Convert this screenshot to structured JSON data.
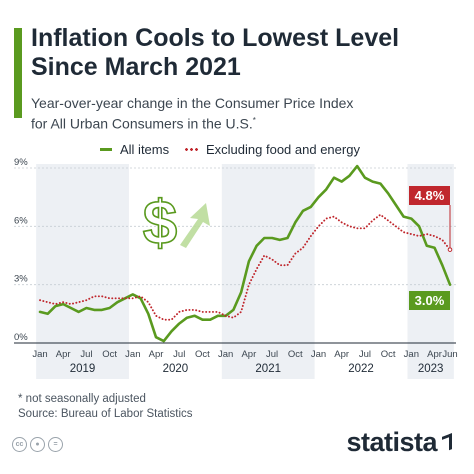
{
  "header": {
    "title_line1": "Inflation Cools to Lowest Level",
    "title_line2": "Since March 2021",
    "subtitle_line1": "Year-over-year change in the Consumer Price Index",
    "subtitle_line2": "for All Urban Consumers in the U.S.",
    "subtitle_mark": "*"
  },
  "footer": {
    "note": "* not seasonally adjusted",
    "source": "Source: Bureau of Labor Statistics",
    "brand": "statista"
  },
  "icons": [
    "cc-icon",
    "by-icon",
    "equals-icon",
    "dollar-arrow-icon"
  ],
  "colors": {
    "all_items": "#5a9a1f",
    "core": "#c0272d",
    "title_bar": "#5a9a1f",
    "shade": "#edf0f4"
  },
  "chart_data": {
    "type": "line",
    "title": "Inflation Cools to Lowest Level Since March 2021",
    "subtitle": "Year-over-year change in the Consumer Price Index for All Urban Consumers in the U.S.",
    "x": [
      "2019-01",
      "2019-02",
      "2019-03",
      "2019-04",
      "2019-05",
      "2019-06",
      "2019-07",
      "2019-08",
      "2019-09",
      "2019-10",
      "2019-11",
      "2019-12",
      "2020-01",
      "2020-02",
      "2020-03",
      "2020-04",
      "2020-05",
      "2020-06",
      "2020-07",
      "2020-08",
      "2020-09",
      "2020-10",
      "2020-11",
      "2020-12",
      "2021-01",
      "2021-02",
      "2021-03",
      "2021-04",
      "2021-05",
      "2021-06",
      "2021-07",
      "2021-08",
      "2021-09",
      "2021-10",
      "2021-11",
      "2021-12",
      "2022-01",
      "2022-02",
      "2022-03",
      "2022-04",
      "2022-05",
      "2022-06",
      "2022-07",
      "2022-08",
      "2022-09",
      "2022-10",
      "2022-11",
      "2022-12",
      "2023-01",
      "2023-02",
      "2023-03",
      "2023-04",
      "2023-05",
      "2023-06"
    ],
    "x_tick_labels": [
      "Jan",
      "Apr",
      "Jul",
      "Oct",
      "Jan",
      "Apr",
      "Jul",
      "Oct",
      "Jan",
      "Apr",
      "Jul",
      "Oct",
      "Jan",
      "Apr",
      "Jul",
      "Oct",
      "Jan",
      "Apr",
      "Jun"
    ],
    "year_labels": [
      "2019",
      "2020",
      "2021",
      "2022",
      "2023"
    ],
    "series": [
      {
        "name": "All items",
        "values": [
          1.6,
          1.5,
          1.9,
          2.0,
          1.8,
          1.6,
          1.8,
          1.7,
          1.7,
          1.8,
          2.1,
          2.3,
          2.5,
          2.3,
          1.5,
          0.3,
          0.1,
          0.6,
          1.0,
          1.3,
          1.4,
          1.2,
          1.2,
          1.4,
          1.4,
          1.7,
          2.6,
          4.2,
          5.0,
          5.4,
          5.4,
          5.3,
          5.4,
          6.2,
          6.8,
          7.0,
          7.5,
          7.9,
          8.5,
          8.3,
          8.6,
          9.1,
          8.5,
          8.3,
          8.2,
          7.7,
          7.1,
          6.5,
          6.4,
          6.0,
          5.0,
          4.9,
          4.0,
          3.0
        ]
      },
      {
        "name": "Excluding food and energy",
        "values": [
          2.2,
          2.1,
          2.0,
          2.1,
          2.0,
          2.1,
          2.2,
          2.4,
          2.4,
          2.3,
          2.3,
          2.3,
          2.3,
          2.4,
          2.1,
          1.4,
          1.2,
          1.2,
          1.6,
          1.7,
          1.7,
          1.6,
          1.6,
          1.6,
          1.4,
          1.3,
          1.6,
          3.0,
          3.8,
          4.5,
          4.3,
          4.0,
          4.0,
          4.6,
          4.9,
          5.5,
          6.0,
          6.4,
          6.5,
          6.2,
          6.0,
          5.9,
          5.9,
          6.3,
          6.6,
          6.3,
          6.0,
          5.7,
          5.6,
          5.5,
          5.6,
          5.5,
          5.3,
          4.8
        ]
      }
    ],
    "value_labels": [
      "4.8%",
      "3.0%"
    ],
    "ylim": [
      0,
      9
    ],
    "y_ticks": [
      0,
      3,
      6,
      9
    ],
    "y_tick_labels": [
      "0%",
      "3%",
      "6%",
      "9%"
    ],
    "grid": true,
    "legend_position": "top"
  }
}
